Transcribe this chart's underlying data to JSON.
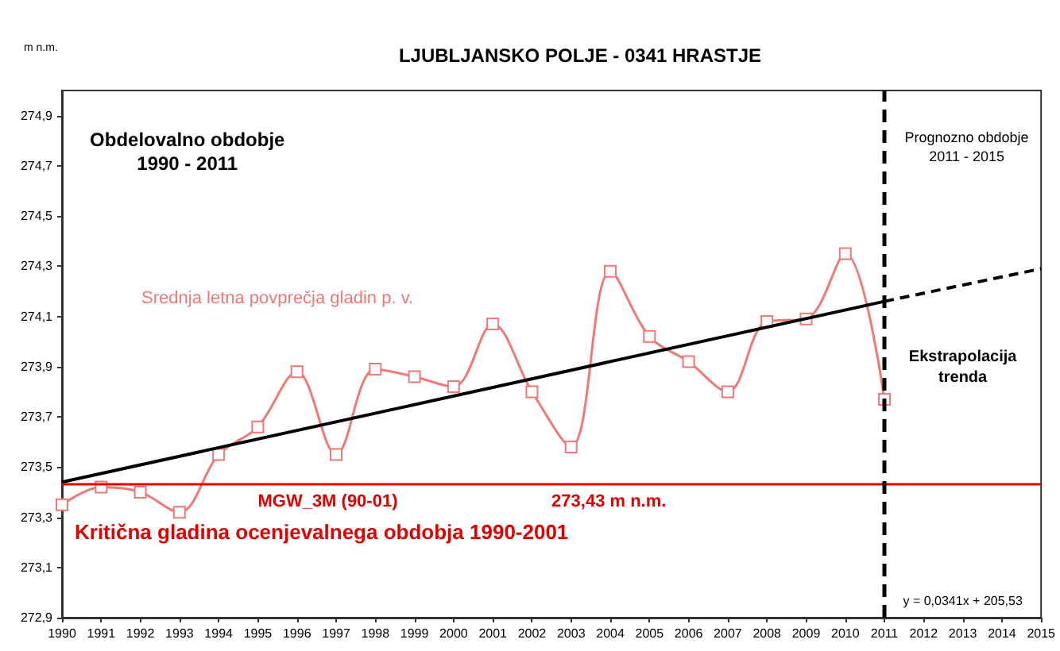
{
  "chart_data": {
    "type": "line",
    "title": "LJUBLJANSKO POLJE - 0341 HRASTJE",
    "ylabel": "m n.m.",
    "xlim": [
      1990,
      2015
    ],
    "xticks": [
      1990,
      1991,
      1992,
      1993,
      1994,
      1995,
      1996,
      1997,
      1998,
      1999,
      2000,
      2001,
      2002,
      2003,
      2004,
      2005,
      2006,
      2007,
      2008,
      2009,
      2010,
      2011,
      2012,
      2013,
      2014,
      2015
    ],
    "ylim": [
      272.9,
      275.0
    ],
    "yticks": [
      {
        "value": 272.9,
        "label": "272,9"
      },
      {
        "value": 273.1,
        "label": "273,1"
      },
      {
        "value": 273.3,
        "label": "273,3"
      },
      {
        "value": 273.5,
        "label": "273,5"
      },
      {
        "value": 273.7,
        "label": "273,7"
      },
      {
        "value": 273.9,
        "label": "273,9"
      },
      {
        "value": 274.1,
        "label": "274,1"
      },
      {
        "value": 274.3,
        "label": "274,3"
      },
      {
        "value": 274.5,
        "label": "274,5"
      },
      {
        "value": 274.7,
        "label": "274,7"
      },
      {
        "value": 274.9,
        "label": "274,9"
      }
    ],
    "grid": false,
    "legend": false,
    "series": [
      {
        "name": "Srednja letna povprečja gladin p. v.",
        "color": "#f07878",
        "marker": "square",
        "line_style": "solid",
        "x": [
          1990,
          1991,
          1992,
          1993,
          1994,
          1995,
          1996,
          1997,
          1998,
          1999,
          2000,
          2001,
          2002,
          2003,
          2004,
          2005,
          2006,
          2007,
          2008,
          2009,
          2010,
          2011
        ],
        "values": [
          273.35,
          273.42,
          273.4,
          273.32,
          273.55,
          273.66,
          273.88,
          273.55,
          273.89,
          273.86,
          273.82,
          274.07,
          273.8,
          273.58,
          274.28,
          274.02,
          273.92,
          273.8,
          274.08,
          274.09,
          274.35,
          273.77
        ]
      },
      {
        "color": "#000000",
        "marker": "none",
        "line_style": "solid",
        "x": [
          1990,
          2011
        ],
        "values": [
          273.44,
          274.16
        ]
      },
      {
        "color": "#000000",
        "marker": "none",
        "line_style": "dashed",
        "x": [
          2011,
          2015
        ],
        "values": [
          274.16,
          274.29
        ]
      }
    ],
    "ref_lines": [
      {
        "axis": "y",
        "value": 273.43,
        "color": "#e00000",
        "line_style": "solid"
      },
      {
        "axis": "x",
        "value": 2011,
        "color": "#000000",
        "line_style": "dashed"
      }
    ],
    "annotations": [
      {
        "text": "MGW_3M (90-01)",
        "x": 1995,
        "y": 273.43
      },
      {
        "text": "273,43 m n.m.",
        "x": 2002.5,
        "y": 273.43
      },
      {
        "text": "Kritična gladina ocenjevalnega obdobja 1990-2001",
        "x": 1990,
        "y": 273.43
      },
      "Obdelovalno obdobje\n1990 - 2011",
      "Prognozno obdobje\n2011 - 2015",
      "Ekstrapolacija\ntrenda",
      "y = 0,0341x + 205,53"
    ]
  }
}
